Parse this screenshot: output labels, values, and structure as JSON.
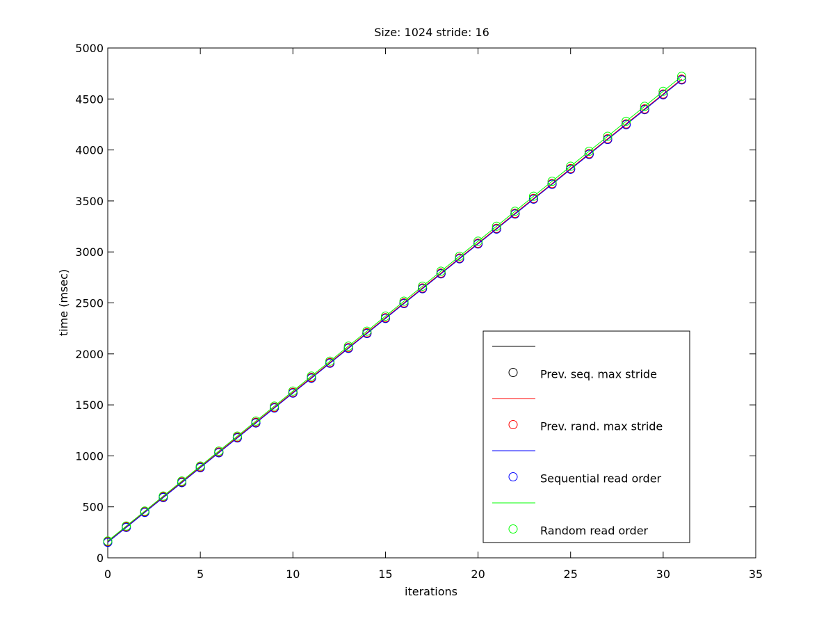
{
  "chart_data": {
    "type": "line",
    "title": "Size: 1024 stride: 16",
    "x_label": "iterations",
    "y_label": "time (msec)",
    "x": [
      0,
      1,
      2,
      3,
      4,
      5,
      6,
      7,
      8,
      9,
      10,
      11,
      12,
      13,
      14,
      15,
      16,
      17,
      18,
      19,
      20,
      21,
      22,
      23,
      24,
      25,
      26,
      27,
      28,
      29,
      30,
      31
    ],
    "xlim": [
      0,
      35
    ],
    "xticks": [
      0,
      5,
      10,
      15,
      20,
      25,
      30,
      35
    ],
    "ylim": [
      0,
      5000
    ],
    "yticks": [
      0,
      500,
      1000,
      1500,
      2000,
      2500,
      3000,
      3500,
      4000,
      4500,
      5000
    ],
    "marker": "circle",
    "legend_position": "lower right",
    "series": [
      {
        "name": "Prev. seq. max stride",
        "color": "#000000",
        "values": [
          155,
          301,
          448,
          594,
          740,
          887,
          1033,
          1179,
          1325,
          1472,
          1618,
          1764,
          1911,
          2057,
          2203,
          2350,
          2496,
          2642,
          2788,
          2935,
          3081,
          3227,
          3374,
          3520,
          3666,
          3813,
          3959,
          4105,
          4251,
          4398,
          4544,
          4690
        ]
      },
      {
        "name": "Prev. rand. max stride",
        "color": "#ff0000",
        "values": [
          160,
          306,
          453,
          599,
          745,
          892,
          1038,
          1184,
          1330,
          1477,
          1623,
          1769,
          1916,
          2062,
          2208,
          2355,
          2501,
          2647,
          2793,
          2940,
          3086,
          3232,
          3379,
          3525,
          3671,
          3818,
          3964,
          4110,
          4256,
          4403,
          4549,
          4695
        ]
      },
      {
        "name": "Sequential read order",
        "color": "#0000ff",
        "values": [
          152,
          298,
          445,
          591,
          737,
          884,
          1030,
          1176,
          1322,
          1469,
          1615,
          1761,
          1908,
          2054,
          2200,
          2347,
          2493,
          2639,
          2785,
          2932,
          3078,
          3224,
          3371,
          3517,
          3663,
          3810,
          3956,
          4102,
          4248,
          4395,
          4541,
          4687
        ]
      },
      {
        "name": "Random read order",
        "color": "#00ff00",
        "values": [
          165,
          312,
          459,
          606,
          753,
          900,
          1047,
          1194,
          1341,
          1488,
          1635,
          1782,
          1929,
          2076,
          2223,
          2370,
          2517,
          2664,
          2811,
          2958,
          3105,
          3252,
          3399,
          3546,
          3693,
          3840,
          3987,
          4134,
          4281,
          4428,
          4575,
          4722
        ]
      }
    ]
  }
}
